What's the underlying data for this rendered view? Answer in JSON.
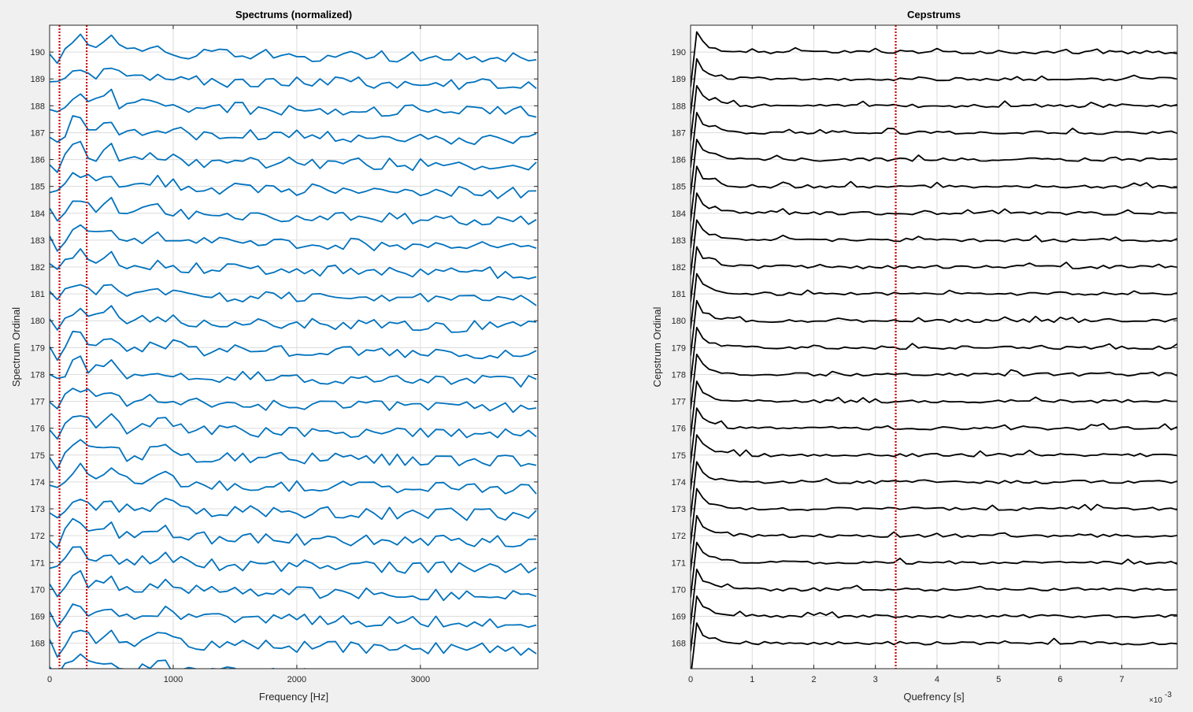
{
  "chart_data": [
    {
      "type": "line",
      "title": "Spectrums (normalized)",
      "xlabel": "Frequency [Hz]",
      "ylabel": "Spectrum Ordinal",
      "xlim": [
        0,
        3950
      ],
      "ylim": [
        167.05,
        191.0
      ],
      "xticks": [
        0,
        1000,
        2000,
        3000
      ],
      "xtick_labels": [
        "0",
        "1000",
        "2000",
        "3000"
      ],
      "yticks": [
        168,
        169,
        170,
        171,
        172,
        173,
        174,
        175,
        176,
        177,
        178,
        179,
        180,
        181,
        182,
        183,
        184,
        185,
        186,
        187,
        188,
        189,
        190
      ],
      "grid": true,
      "color": "#0072bd",
      "series_ordinals": [
        167,
        168,
        169,
        170,
        171,
        172,
        173,
        174,
        175,
        176,
        177,
        178,
        179,
        180,
        181,
        182,
        183,
        184,
        185,
        186,
        187,
        188,
        189,
        190
      ],
      "x_start": 0,
      "x_step": 62.5,
      "points_per_series": 64,
      "vlines": [
        {
          "x": 80,
          "color": "#cc0000"
        },
        {
          "x": 300,
          "color": "#cc0000"
        }
      ]
    },
    {
      "type": "line",
      "title": "Cepstrums",
      "xlabel": "Quefrency [s]",
      "ylabel": "Cepstrum Ordinal",
      "xlim": [
        0,
        0.0079
      ],
      "ylim": [
        167.05,
        191.0
      ],
      "xticks": [
        0,
        0.001,
        0.002,
        0.003,
        0.004,
        0.005,
        0.006,
        0.007
      ],
      "xtick_labels": [
        "0",
        "1",
        "2",
        "3",
        "4",
        "5",
        "6",
        "7"
      ],
      "x_exponent": "×10",
      "x_exponent_power": "-3",
      "yticks": [
        168,
        169,
        170,
        171,
        172,
        173,
        174,
        175,
        176,
        177,
        178,
        179,
        180,
        181,
        182,
        183,
        184,
        185,
        186,
        187,
        188,
        189,
        190
      ],
      "grid": true,
      "color": "#000000",
      "series_ordinals": [
        168,
        169,
        170,
        171,
        172,
        173,
        174,
        175,
        176,
        177,
        178,
        179,
        180,
        181,
        182,
        183,
        184,
        185,
        186,
        187,
        188,
        189,
        190
      ],
      "x_start": 0,
      "x_step": 0.0001,
      "points_per_series": 80,
      "vlines": [
        {
          "x": 0.00333,
          "color": "#cc0000"
        }
      ]
    }
  ]
}
